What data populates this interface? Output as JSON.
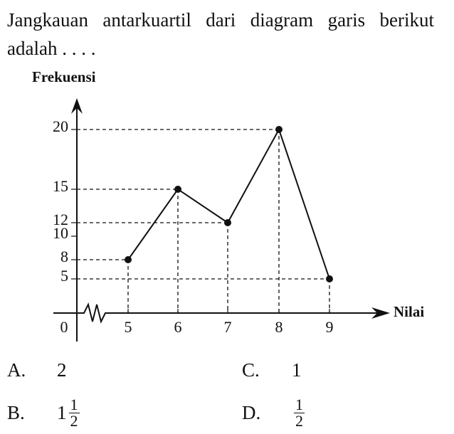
{
  "question": "Jangkauan antarkuartil dari diagram garis berikut adalah . . . .",
  "chart_data": {
    "type": "line",
    "xlabel": "Nilai",
    "ylabel": "Frekuensi",
    "x": [
      5,
      6,
      7,
      8,
      9
    ],
    "values": [
      8,
      15,
      12,
      20,
      5
    ],
    "color": "#111111",
    "xticks": [
      0,
      5,
      6,
      7,
      8,
      9
    ],
    "yticks": [
      5,
      8,
      10,
      12,
      15,
      20
    ]
  },
  "options": [
    {
      "label": "A.",
      "text": "2"
    },
    {
      "label": "B.",
      "whole": "1",
      "numerator": "1",
      "denominator": "2"
    },
    {
      "label": "C.",
      "text": "1"
    },
    {
      "label": "D.",
      "numerator": "1",
      "denominator": "2"
    }
  ]
}
